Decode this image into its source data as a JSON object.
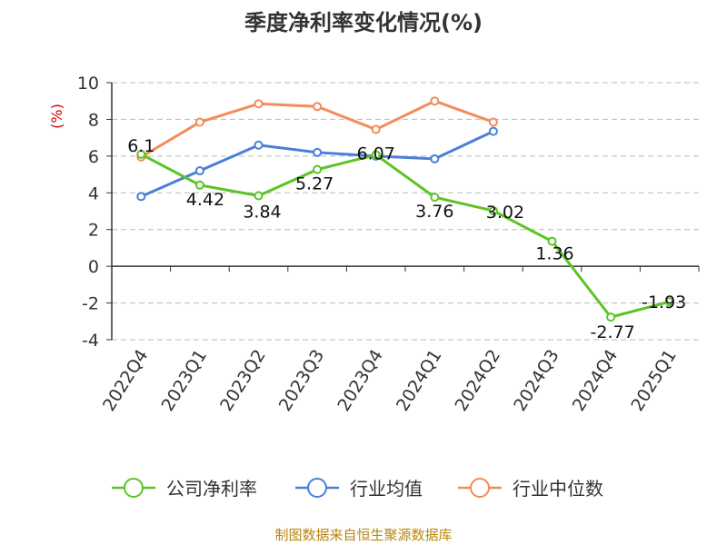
{
  "chart_data": {
    "type": "line",
    "title": "季度净利率变化情况(%)",
    "ylabel": "(%)",
    "ylim": [
      -4,
      10
    ],
    "yticks": [
      10,
      8,
      6,
      4,
      2,
      0,
      -2,
      -4
    ],
    "grid": true,
    "legend_position": "bottom",
    "categories": [
      "2022Q4",
      "2023Q1",
      "2023Q2",
      "2023Q3",
      "2023Q4",
      "2024Q1",
      "2024Q2",
      "2024Q3",
      "2024Q4",
      "2025Q1"
    ],
    "series": [
      {
        "name": "公司净利率",
        "color": "#5bc425",
        "values": [
          6.1,
          4.42,
          3.84,
          5.27,
          6.07,
          3.76,
          3.02,
          1.36,
          -2.77,
          -1.93
        ],
        "labels": [
          "6.1",
          "4.42",
          "3.84",
          "5.27",
          "6.07",
          "3.76",
          "3.02",
          "1.36",
          "-2.77",
          "-1.93"
        ]
      },
      {
        "name": "行业均值",
        "color": "#4a7fd8",
        "values": [
          3.8,
          5.2,
          6.6,
          6.2,
          6.0,
          5.85,
          7.35,
          null,
          null,
          null
        ]
      },
      {
        "name": "行业中位数",
        "color": "#f28c5a",
        "values": [
          5.95,
          7.85,
          8.85,
          8.7,
          7.45,
          9.0,
          7.85,
          null,
          null,
          null
        ]
      }
    ],
    "source": "制图数据来自恒生聚源数据库"
  }
}
